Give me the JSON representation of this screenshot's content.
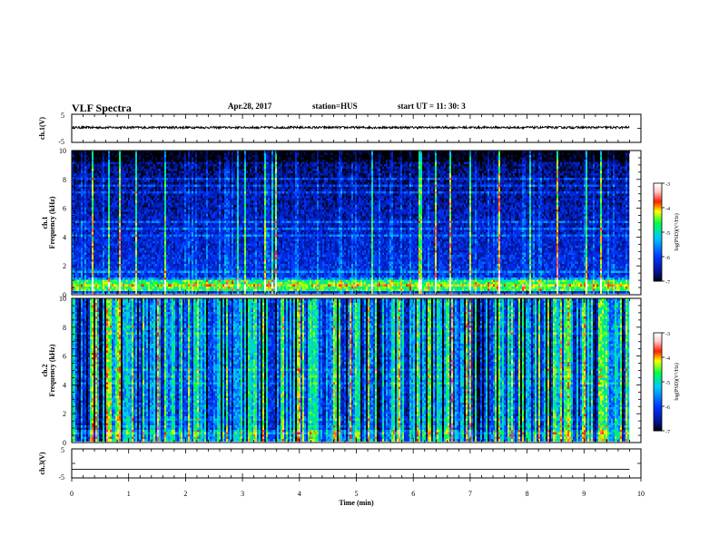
{
  "header": {
    "title": "VLF Spectra",
    "date": "Apr.28, 2017",
    "station": "station=HUS",
    "start_time": "start  UT =   11: 30: 3"
  },
  "chart_data": [
    {
      "type": "line",
      "name": "ch1-waveform",
      "ylabel": "ch.1(V)",
      "ylim": [
        -5,
        5
      ],
      "yticks": [
        "5",
        "-5"
      ],
      "xlim": [
        0,
        10
      ],
      "series": [
        {
          "approx_level": 0.3,
          "approx_amplitude": 0.4,
          "x_range": [
            0,
            9.8
          ]
        }
      ]
    },
    {
      "type": "heatmap",
      "name": "ch1-spectrogram",
      "ylabel_line1": "ch.1",
      "ylabel_line2": "Frequency (kHz)",
      "ylim": [
        0,
        10
      ],
      "yticks": [
        "0",
        "2",
        "4",
        "6",
        "8",
        "10"
      ],
      "xlim": [
        0,
        10
      ],
      "data_x_range": [
        0,
        9.8
      ],
      "colorbar": {
        "label": "log(PSD)(V²/Hz)",
        "range": [
          -7,
          -3
        ],
        "ticks": [
          "-3",
          "-4",
          "-5",
          "-6",
          "-7"
        ]
      },
      "description_values": {
        "background_log_psd": -6.2,
        "strong_band_khz": [
          0.3,
          0.7
        ],
        "strong_band_log_psd": -4.3
      }
    },
    {
      "type": "heatmap",
      "name": "ch2-spectrogram",
      "ylabel_line1": "ch.2",
      "ylabel_line2": "Frequency (kHz)",
      "ylim": [
        0,
        10
      ],
      "yticks": [
        "0",
        "2",
        "4",
        "6",
        "8",
        "10"
      ],
      "xlim": [
        0,
        10
      ],
      "data_x_range": [
        0,
        9.8
      ],
      "colorbar": {
        "label": "log(PSD)(V²/Hz)",
        "range": [
          -7,
          -3
        ],
        "ticks": [
          "-3",
          "-4",
          "-5",
          "-6",
          "-7"
        ]
      },
      "description_values": {
        "background_log_psd": -5.6
      }
    },
    {
      "type": "line",
      "name": "ch3-waveform",
      "ylabel": "ch.3(V)",
      "ylim": [
        -5,
        5
      ],
      "yticks": [
        "5",
        "-5"
      ],
      "xlim": [
        0,
        10
      ],
      "xlabel": "Time  (min)",
      "xticks": [
        "0",
        "1",
        "2",
        "3",
        "4",
        "5",
        "6",
        "7",
        "8",
        "9",
        "10"
      ],
      "series": [
        {
          "approx_level": -2.0,
          "x_range": [
            0,
            9.8
          ]
        }
      ]
    }
  ],
  "colors": {
    "background": "#ffffff",
    "axis": "#000000",
    "colormap": [
      "#000000",
      "#001a8c",
      "#0033ff",
      "#00c8ff",
      "#00ff40",
      "#ffff00",
      "#ff2000",
      "#ffd0d0",
      "#ffffff"
    ]
  }
}
